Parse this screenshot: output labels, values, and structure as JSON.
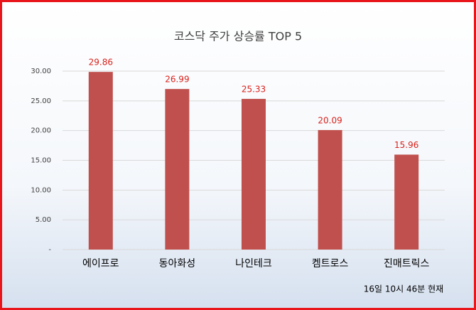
{
  "chart_data": {
    "type": "bar",
    "title": "코스닥 주가 상승률 TOP 5",
    "categories": [
      "에이프로",
      "동아화성",
      "나인테크",
      "켐트로스",
      "진매트릭스"
    ],
    "values": [
      29.86,
      26.99,
      25.33,
      20.09,
      15.96
    ],
    "color": "#c0504d",
    "label_color": "#d9211b",
    "ylim": [
      0,
      30
    ],
    "yticks": [
      {
        "value": 0,
        "label": "-"
      },
      {
        "value": 5,
        "label": "5.00"
      },
      {
        "value": 10,
        "label": "10.00"
      },
      {
        "value": 15,
        "label": "15.00"
      },
      {
        "value": 20,
        "label": "20.00"
      },
      {
        "value": 25,
        "label": "25.00"
      },
      {
        "value": 30,
        "label": "30.00"
      }
    ],
    "grid": true,
    "annotation": "16일 10시  46분 현재"
  }
}
